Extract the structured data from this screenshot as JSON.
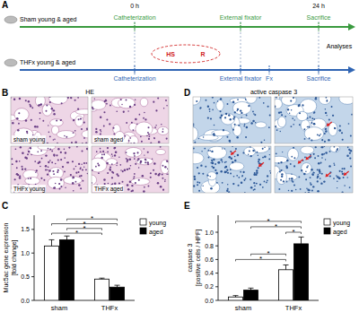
{
  "panels": {
    "a": "A",
    "b": "B",
    "c": "C",
    "d": "D",
    "e": "E"
  },
  "timeline": {
    "rows": [
      {
        "name": "Sham young & aged",
        "color": "#3a9a3f",
        "events": [
          "Catheterization",
          "External fixator",
          "Sacrifice"
        ]
      },
      {
        "name": "THFx young & aged",
        "color": "#2f64b3",
        "events": [
          "Catheterization",
          "External fixator",
          "Fx",
          "Sacrifice"
        ]
      }
    ],
    "times": [
      "0 h",
      "24 h"
    ],
    "hs": "HS",
    "r": "R",
    "analyses": "Analyses"
  },
  "images": {
    "b": {
      "title": "HE",
      "labels": [
        "sham young",
        "sham aged",
        "THFx young",
        "THFx aged"
      ]
    },
    "d": {
      "title": "active caspase 3"
    }
  },
  "chart_data": [
    {
      "type": "bar",
      "y_label": [
        "Muc5ac gene expression",
        "[fold change]"
      ],
      "categories": [
        "sham",
        "THFx"
      ],
      "series": [
        {
          "name": "young",
          "color": "#ffffff",
          "values": [
            1.15,
            0.45
          ],
          "errors": [
            0.13,
            0.02
          ]
        },
        {
          "name": "aged",
          "color": "#000000",
          "values": [
            1.28,
            0.28
          ],
          "errors": [
            0.08,
            0.04
          ]
        }
      ],
      "ylim": [
        0,
        1.8
      ],
      "yticks": [
        {
          "value": 0,
          "label": "0.0"
        },
        {
          "value": 0.5,
          "label": "0.5"
        },
        {
          "value": 1,
          "label": "1.0"
        },
        {
          "value": 1.5,
          "label": "1.5"
        }
      ],
      "legend": "right",
      "annotations": [
        {
          "from": 0,
          "to": 2,
          "y": 1.42,
          "label": "*"
        },
        {
          "from": 1,
          "to": 2,
          "y": 1.52,
          "label": "*"
        },
        {
          "from": 0,
          "to": 3,
          "y": 1.62,
          "label": "*"
        },
        {
          "from": 1,
          "to": 3,
          "y": 1.72,
          "label": "*"
        }
      ]
    },
    {
      "type": "bar",
      "y_label": [
        "caspase 3",
        "[positive cells / HPF]"
      ],
      "categories": [
        "sham",
        "THFx"
      ],
      "series": [
        {
          "name": "young",
          "color": "#ffffff",
          "values": [
            0.05,
            0.45
          ],
          "errors": [
            0.02,
            0.07
          ]
        },
        {
          "name": "aged",
          "color": "#000000",
          "values": [
            0.15,
            0.83
          ],
          "errors": [
            0.03,
            0.1
          ]
        }
      ],
      "ylim": [
        0,
        1.25
      ],
      "yticks": [
        {
          "value": 0,
          "label": "0.0"
        },
        {
          "value": 0.2,
          "label": "0.2"
        },
        {
          "value": 0.4,
          "label": "0.4"
        },
        {
          "value": 0.6,
          "label": "0.6"
        },
        {
          "value": 0.8,
          "label": "0.8"
        },
        {
          "value": 1,
          "label": "1.0"
        }
      ],
      "legend": "right",
      "annotations": [
        {
          "from": 0,
          "to": 2,
          "y": 0.6,
          "label": "*"
        },
        {
          "from": 1,
          "to": 2,
          "y": 0.68,
          "label": "*"
        },
        {
          "from": 2,
          "to": 3,
          "y": 1.0,
          "label": "*"
        },
        {
          "from": 1,
          "to": 3,
          "y": 1.08,
          "label": "*"
        },
        {
          "from": 0,
          "to": 3,
          "y": 1.16,
          "label": "*"
        }
      ]
    }
  ]
}
